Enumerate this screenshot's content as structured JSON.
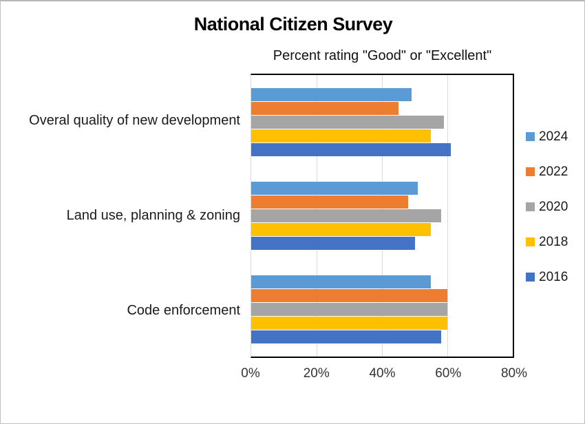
{
  "title": "National Citizen Survey",
  "subtitle": "Percent rating \"Good\" or \"Excellent\"",
  "chart_data": {
    "type": "bar",
    "orientation": "horizontal",
    "title": "National Citizen Survey",
    "subtitle": "Percent rating \"Good\" or \"Excellent\"",
    "categories": [
      "Overal quality of new development",
      "Land use, planning & zoning",
      "Code enforcement"
    ],
    "series": [
      {
        "name": "2024",
        "color": "#5B9BD5",
        "values": [
          49,
          51,
          55
        ]
      },
      {
        "name": "2022",
        "color": "#ED7D31",
        "values": [
          45,
          48,
          60
        ]
      },
      {
        "name": "2020",
        "color": "#A5A5A5",
        "values": [
          59,
          58,
          60
        ]
      },
      {
        "name": "2018",
        "color": "#FFC000",
        "values": [
          55,
          55,
          60
        ]
      },
      {
        "name": "2016",
        "color": "#4472C4",
        "values": [
          61,
          50,
          58
        ]
      }
    ],
    "x_axis": {
      "min": 0,
      "max": 80,
      "tick_step": 20,
      "tick_labels": [
        "0%",
        "20%",
        "40%",
        "60%",
        "80%"
      ]
    },
    "legend": {
      "position": "right",
      "entries": [
        "2024",
        "2022",
        "2020",
        "2018",
        "2016"
      ]
    },
    "gridlines": {
      "vertical": true,
      "color": "#d9d9d9"
    },
    "plot_border_color": "#000000"
  }
}
